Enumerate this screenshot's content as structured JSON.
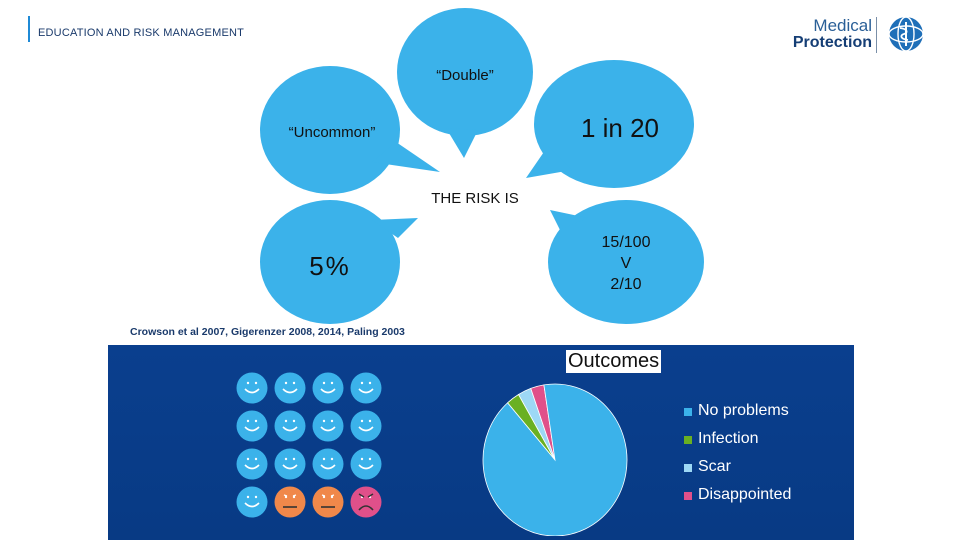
{
  "header": {
    "section_label": "EDUCATION AND RISK MANAGEMENT",
    "logo_line1": "Medical",
    "logo_line2": "Protection",
    "logo_icon": "caduceus-globe-icon"
  },
  "bubbles": {
    "double": "“Double”",
    "uncommon": "“Uncommon”",
    "one_in_twenty": "1 in 20",
    "risk_is": "THE RISK IS",
    "five_percent": "5%",
    "fraction_line1": "15/100",
    "fraction_line2": "V",
    "fraction_line3": "2/10"
  },
  "citation": "Crowson et al 2007, Gigerenzer 2008, 2014, Paling 2003",
  "outcomes": {
    "title": "Outcomes",
    "faces": [
      {
        "mood": "happy",
        "color": "#3bb2ea"
      },
      {
        "mood": "happy",
        "color": "#3bb2ea"
      },
      {
        "mood": "happy",
        "color": "#3bb2ea"
      },
      {
        "mood": "happy",
        "color": "#3bb2ea"
      },
      {
        "mood": "happy",
        "color": "#3bb2ea"
      },
      {
        "mood": "happy",
        "color": "#3bb2ea"
      },
      {
        "mood": "happy",
        "color": "#3bb2ea"
      },
      {
        "mood": "happy",
        "color": "#3bb2ea"
      },
      {
        "mood": "happy",
        "color": "#3bb2ea"
      },
      {
        "mood": "happy",
        "color": "#3bb2ea"
      },
      {
        "mood": "happy",
        "color": "#3bb2ea"
      },
      {
        "mood": "happy",
        "color": "#3bb2ea"
      },
      {
        "mood": "happy",
        "color": "#3bb2ea"
      },
      {
        "mood": "neutral",
        "color": "#f0884a"
      },
      {
        "mood": "neutral",
        "color": "#f0884a"
      },
      {
        "mood": "sad",
        "color": "#e0508a"
      }
    ]
  },
  "chart_data": {
    "type": "pie",
    "title": "Outcomes",
    "categories": [
      "No problems",
      "Infection",
      "Scar",
      "Disappointed"
    ],
    "values": [
      91,
      3,
      3,
      3
    ],
    "colors": [
      "#3bb2ea",
      "#6ab023",
      "#9dd8f5",
      "#e0508a"
    ],
    "legend_position": "right"
  }
}
